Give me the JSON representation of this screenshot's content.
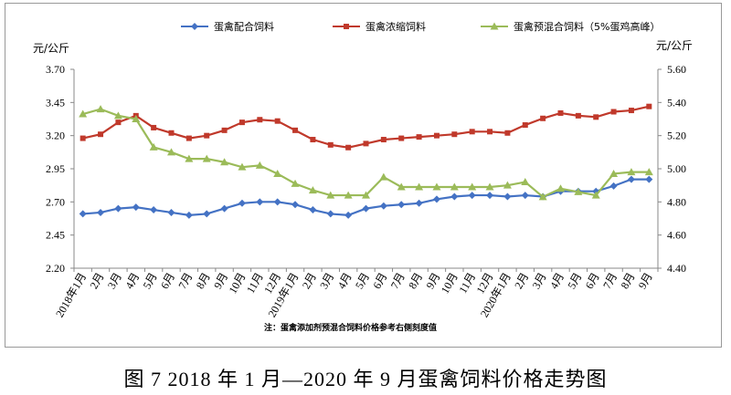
{
  "caption": "图 7   2018 年 1 月—2020 年 9 月蛋禽饲料价格走势图",
  "note": "注：蛋禽添加剂预混合饲料价格参考右侧刻度值",
  "chart_data": {
    "type": "line",
    "categories": [
      "2018年1月",
      "2月",
      "3月",
      "4月",
      "5月",
      "6月",
      "7月",
      "8月",
      "9月",
      "10月",
      "11月",
      "12月",
      "2019年1月",
      "2月",
      "3月",
      "4月",
      "5月",
      "6月",
      "7月",
      "8月",
      "9月",
      "10月",
      "11月",
      "12月",
      "2020年1月",
      "2月",
      "3月",
      "4月",
      "5月",
      "6月",
      "7月",
      "8月",
      "9月"
    ],
    "y_left": {
      "unit": "元/公斤",
      "ylim": [
        2.2,
        3.7
      ],
      "ticks": [
        "3.70",
        "3.45",
        "3.20",
        "2.95",
        "2.70",
        "2.45",
        "2.20"
      ]
    },
    "y_right": {
      "unit": "元/公斤",
      "ylim": [
        4.4,
        5.6
      ],
      "ticks": [
        "5.60",
        "5.40",
        "5.20",
        "5.00",
        "4.80",
        "4.60",
        "4.40"
      ]
    },
    "legend_position": "top",
    "grid": false,
    "series": [
      {
        "name": "蛋禽配合饲料",
        "axis": "left",
        "color": "#4472C4",
        "marker": "diamond",
        "values": [
          2.61,
          2.62,
          2.65,
          2.66,
          2.64,
          2.62,
          2.6,
          2.61,
          2.65,
          2.69,
          2.7,
          2.7,
          2.68,
          2.64,
          2.61,
          2.6,
          2.65,
          2.67,
          2.68,
          2.69,
          2.72,
          2.74,
          2.75,
          2.75,
          2.74,
          2.75,
          2.74,
          2.78,
          2.78,
          2.78,
          2.82,
          2.87,
          2.87
        ]
      },
      {
        "name": "蛋禽浓缩饲料",
        "axis": "left",
        "color": "#C0392B",
        "marker": "square",
        "values": [
          3.18,
          3.21,
          3.3,
          3.35,
          3.26,
          3.22,
          3.18,
          3.2,
          3.24,
          3.3,
          3.32,
          3.31,
          3.24,
          3.17,
          3.13,
          3.11,
          3.14,
          3.17,
          3.18,
          3.19,
          3.2,
          3.21,
          3.23,
          3.23,
          3.22,
          3.28,
          3.33,
          3.37,
          3.35,
          3.34,
          3.38,
          3.39,
          3.42
        ]
      },
      {
        "name": "蛋禽预混合饲料（5%蛋鸡高峰）",
        "axis": "right",
        "color": "#9BBB59",
        "marker": "triangle",
        "values": [
          5.33,
          5.36,
          5.32,
          5.3,
          5.13,
          5.1,
          5.06,
          5.06,
          5.04,
          5.01,
          5.02,
          4.97,
          4.91,
          4.87,
          4.84,
          4.84,
          4.84,
          4.95,
          4.89,
          4.89,
          4.89,
          4.89,
          4.89,
          4.89,
          4.9,
          4.92,
          4.83,
          4.88,
          4.86,
          4.84,
          4.97,
          4.98,
          4.98
        ]
      }
    ]
  }
}
